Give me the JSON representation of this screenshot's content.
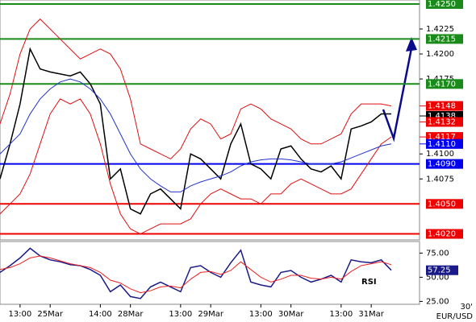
{
  "chart_data": [
    {
      "type": "line",
      "ylim": [
        1.4014,
        1.4254
      ],
      "yticks": [
        1.4225,
        {
          "value": 1.42,
          "label": "1.4200"
        },
        1.4175,
        {
          "value": 1.41,
          "label": "1.4100"
        },
        1.4075
      ],
      "levels": [
        {
          "value": 1.425,
          "label": "1.4250",
          "color": "#1a8a1a"
        },
        {
          "value": 1.4215,
          "color": "#1a8a1a"
        },
        {
          "value": 1.417,
          "label": "1.4170",
          "color": "#1a8a1a"
        },
        {
          "value": 1.409,
          "label": "1.4090",
          "color": "#0000ee"
        },
        {
          "value": 1.405,
          "label": "1.4050",
          "color": "#ee0000"
        },
        {
          "value": 1.402,
          "label": "1.4020",
          "color": "#ee0000"
        }
      ],
      "markers": [
        {
          "value": 1.4148,
          "color": "#ee0000"
        },
        {
          "value": 1.4138,
          "color": "#000000"
        },
        {
          "value": 1.4132,
          "color": "#ee0000"
        },
        {
          "value": 1.4117,
          "color": "#ee0000"
        },
        {
          "value": 1.411,
          "label": "1.4110",
          "color": "#0000ee"
        }
      ],
      "series": [
        {
          "color": "#000000",
          "values": [
            1.4075,
            1.411,
            1.415,
            1.4205,
            1.4185,
            1.4182,
            1.418,
            1.4178,
            1.4182,
            1.417,
            1.415,
            1.4075,
            1.4085,
            1.4045,
            1.404,
            1.406,
            1.4065,
            1.4055,
            1.4045,
            1.41,
            1.4095,
            1.4085,
            1.4075,
            1.411,
            1.413,
            1.409,
            1.4085,
            1.4075,
            1.4105,
            1.4108,
            1.4095,
            1.4085,
            1.4082,
            1.4088,
            1.4075,
            1.4125,
            1.4128,
            1.4132,
            1.414,
            1.414
          ]
        },
        {
          "color": "#dd1111",
          "values": [
            1.413,
            1.416,
            1.42,
            1.4225,
            1.4235,
            1.4225,
            1.4215,
            1.4205,
            1.4195,
            1.42,
            1.4205,
            1.42,
            1.4185,
            1.4155,
            1.411,
            1.4105,
            1.41,
            1.4095,
            1.4105,
            1.4125,
            1.4135,
            1.413,
            1.4115,
            1.412,
            1.4145,
            1.415,
            1.4145,
            1.4135,
            1.413,
            1.4125,
            1.4115,
            1.411,
            1.411,
            1.4115,
            1.412,
            1.414,
            1.415,
            1.415,
            1.415,
            1.4148
          ]
        },
        {
          "color": "#dd1111",
          "values": [
            1.404,
            1.405,
            1.406,
            1.408,
            1.411,
            1.414,
            1.4155,
            1.415,
            1.4155,
            1.414,
            1.411,
            1.407,
            1.404,
            1.4025,
            1.402,
            1.4025,
            1.403,
            1.403,
            1.403,
            1.4035,
            1.405,
            1.406,
            1.4065,
            1.406,
            1.4055,
            1.4055,
            1.405,
            1.406,
            1.406,
            1.407,
            1.4075,
            1.407,
            1.4065,
            1.406,
            1.406,
            1.4065,
            1.408,
            1.4095,
            1.411,
            1.4117
          ]
        },
        {
          "color": "#2233cc",
          "values": [
            1.41,
            1.411,
            1.412,
            1.414,
            1.4155,
            1.4165,
            1.4172,
            1.4175,
            1.4172,
            1.4165,
            1.4155,
            1.414,
            1.412,
            1.41,
            1.4085,
            1.4075,
            1.4068,
            1.4062,
            1.4062,
            1.4068,
            1.4072,
            1.4075,
            1.4078,
            1.4082,
            1.4088,
            1.4092,
            1.4094,
            1.4095,
            1.4095,
            1.4094,
            1.4092,
            1.409,
            1.409,
            1.409,
            1.4092,
            1.4096,
            1.41,
            1.4104,
            1.4108,
            1.411
          ]
        }
      ]
    },
    {
      "type": "line",
      "label": "RSI",
      "timeframe": "30'",
      "symbol": "EUR/USD",
      "ylim": [
        22,
        87
      ],
      "yticks": [
        {
          "value": 75,
          "label": "75.00"
        },
        {
          "value": 50,
          "label": "50.00"
        },
        {
          "value": 25,
          "label": "25.00"
        }
      ],
      "categories": [
        null,
        null,
        "13:00",
        null,
        null,
        "25Mar",
        null,
        null,
        null,
        null,
        "14:00",
        null,
        null,
        "28Mar",
        null,
        null,
        null,
        null,
        "13:00",
        null,
        null,
        "29Mar",
        null,
        null,
        null,
        null,
        "13:00",
        null,
        null,
        "30Mar",
        null,
        null,
        null,
        null,
        "13:00",
        null,
        null,
        "31Mar",
        null,
        null
      ],
      "series": [
        {
          "color": "#1a1a88",
          "values": [
            55,
            62,
            70,
            80,
            72,
            68,
            66,
            63,
            62,
            58,
            52,
            35,
            42,
            30,
            28,
            40,
            45,
            40,
            35,
            60,
            62,
            55,
            50,
            65,
            78,
            45,
            42,
            40,
            55,
            57,
            50,
            45,
            48,
            52,
            45,
            68,
            66,
            65,
            68,
            57.25
          ]
        },
        {
          "color": "#ee2222",
          "values": [
            58,
            60,
            64,
            70,
            72,
            70,
            67,
            64,
            62,
            60,
            55,
            47,
            44,
            38,
            34,
            36,
            40,
            41,
            39,
            48,
            55,
            56,
            53,
            57,
            66,
            58,
            50,
            45,
            48,
            52,
            52,
            49,
            48,
            50,
            48,
            56,
            62,
            64,
            66,
            63
          ]
        }
      ]
    }
  ]
}
